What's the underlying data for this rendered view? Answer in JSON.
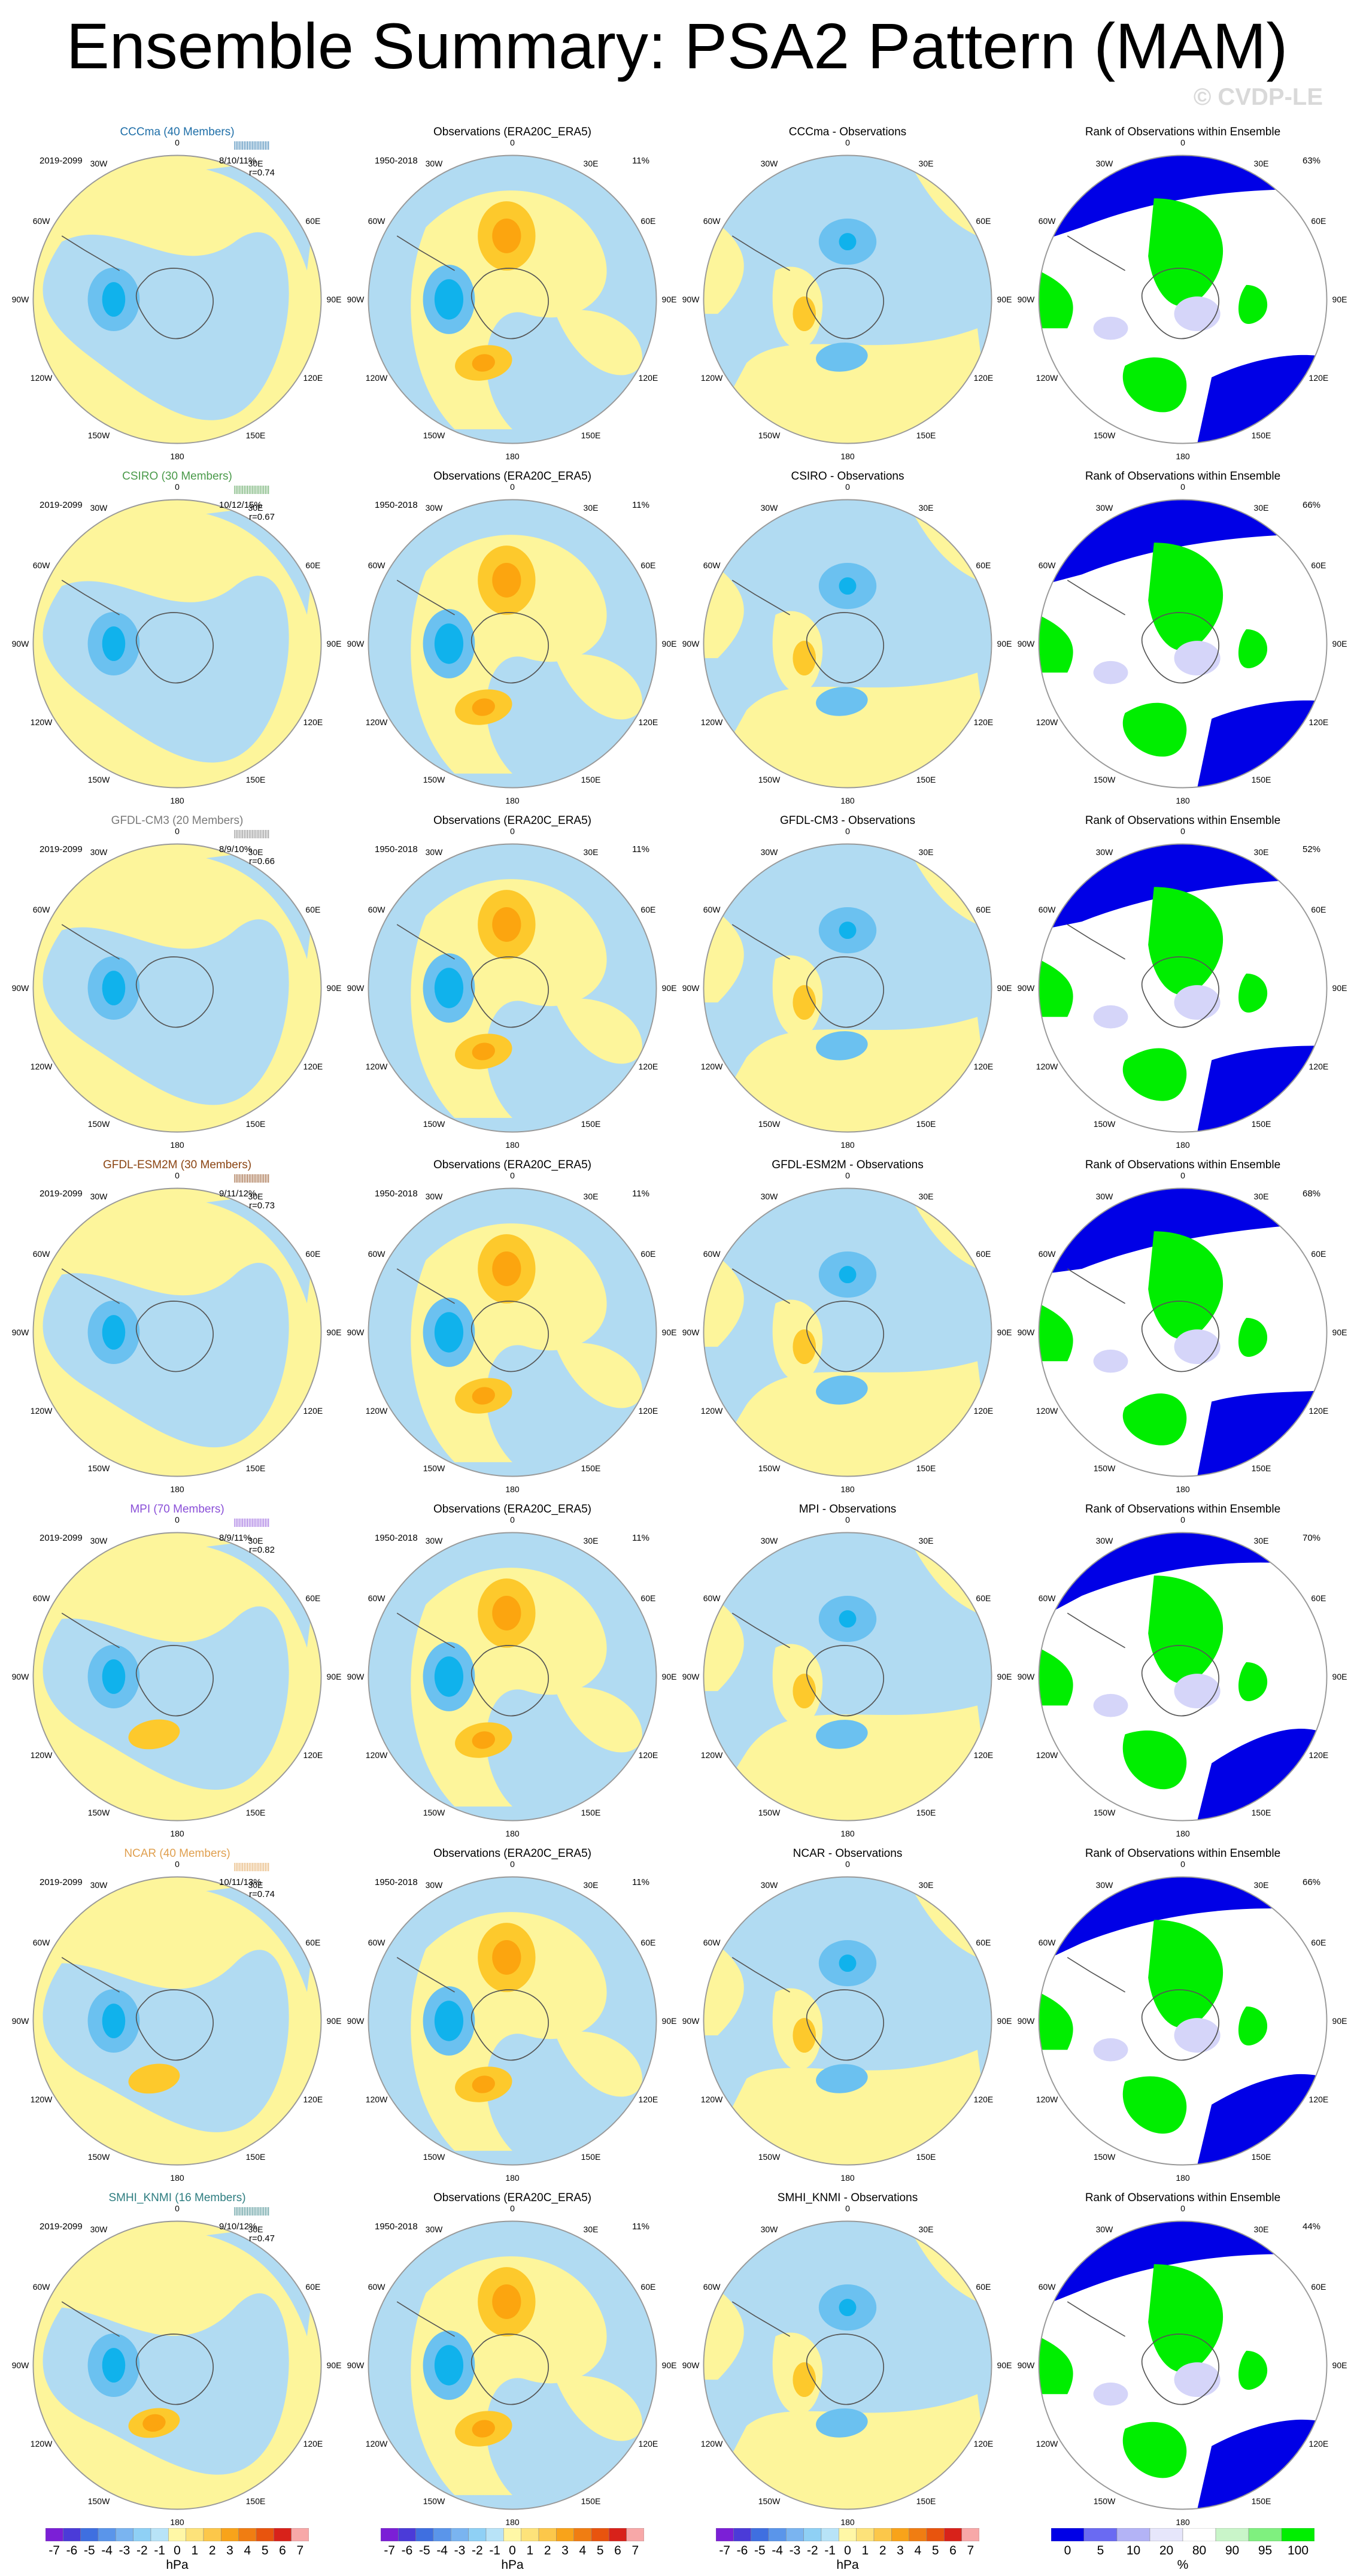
{
  "title": "Ensemble Summary: PSA2 Pattern (MAM)",
  "watermark": "© CVDP-LE",
  "model_period": "2019-2099",
  "obs_period": "1950-2018",
  "obs_title": "Observations (ERA20C_ERA5)",
  "obs_pct": "11%",
  "rank_title": "Rank of Observations within Ensemble",
  "lon_labels": [
    "0",
    "30E",
    "60E",
    "90E",
    "120E",
    "150E",
    "180",
    "150W",
    "120W",
    "90W",
    "60W",
    "30W"
  ],
  "colors": {
    "yellow": "#fdf59b",
    "orange_light": "#fdc92c",
    "orange": "#fca50f",
    "blue_light": "#b1dbf2",
    "blue_mid": "#6bc1f0",
    "blue_strong": "#10b2ec",
    "rank_blue": "#0000e6",
    "rank_lightblue": "#d5d5f9",
    "rank_green": "#00ee00",
    "rank_lightgreen": "#aef5ae"
  },
  "rows": [
    {
      "model": "CCCma (40 Members)",
      "model_color": "#1f6fa8",
      "stats": "8/10/11%",
      "r": "r=0.74",
      "diff_title": "CCCma - Observations",
      "rank_pct": "63%"
    },
    {
      "model": "CSIRO (30 Members)",
      "model_color": "#4a9a4a",
      "stats": "10/12/15%",
      "r": "r=0.67",
      "diff_title": "CSIRO - Observations",
      "rank_pct": "66%"
    },
    {
      "model": "GFDL-CM3 (20 Members)",
      "model_color": "#7a7a7a",
      "stats": "8/9/10%",
      "r": "r=0.66",
      "diff_title": "GFDL-CM3 - Observations",
      "rank_pct": "52%"
    },
    {
      "model": "GFDL-ESM2M (30 Members)",
      "model_color": "#8b4513",
      "stats": "9/11/12%",
      "r": "r=0.73",
      "diff_title": "GFDL-ESM2M - Observations",
      "rank_pct": "68%"
    },
    {
      "model": "MPI (70 Members)",
      "model_color": "#8a4fd8",
      "stats": "8/9/11%",
      "r": "r=0.82",
      "diff_title": "MPI - Observations",
      "rank_pct": "70%"
    },
    {
      "model": "NCAR (40 Members)",
      "model_color": "#e0a050",
      "stats": "10/11/13%",
      "r": "r=0.74",
      "diff_title": "NCAR - Observations",
      "rank_pct": "66%"
    },
    {
      "model": "SMHI_KNMI (16 Members)",
      "model_color": "#2e7d80",
      "stats": "9/10/12%",
      "r": "r=0.47",
      "diff_title": "SMHI_KNMI - Observations",
      "rank_pct": "44%"
    }
  ],
  "colorbar_hpa": {
    "labels": [
      "-7",
      "-6",
      "-5",
      "-4",
      "-3",
      "-2",
      "-1",
      "0",
      "1",
      "2",
      "3",
      "4",
      "5",
      "6",
      "7"
    ],
    "unit": "hPa",
    "colors": [
      "#7b1fd6",
      "#4b3bd8",
      "#3f6fe0",
      "#5a95ea",
      "#7ab4f0",
      "#8fd0f5",
      "#b8e3f7",
      "#fff7a6",
      "#fde27a",
      "#fcc74a",
      "#f8a31a",
      "#f07d12",
      "#e8540e",
      "#d8221a",
      "#f7a8a8"
    ]
  },
  "colorbar_rank": {
    "labels": [
      "0",
      "5",
      "10",
      "20",
      "80",
      "90",
      "95",
      "100"
    ],
    "unit": "%",
    "colors": [
      "#0000e6",
      "#6a6af2",
      "#b3b3f6",
      "#e6e6fb",
      "#ffffff",
      "#c9f5c9",
      "#7ff07f",
      "#00ee00"
    ]
  }
}
